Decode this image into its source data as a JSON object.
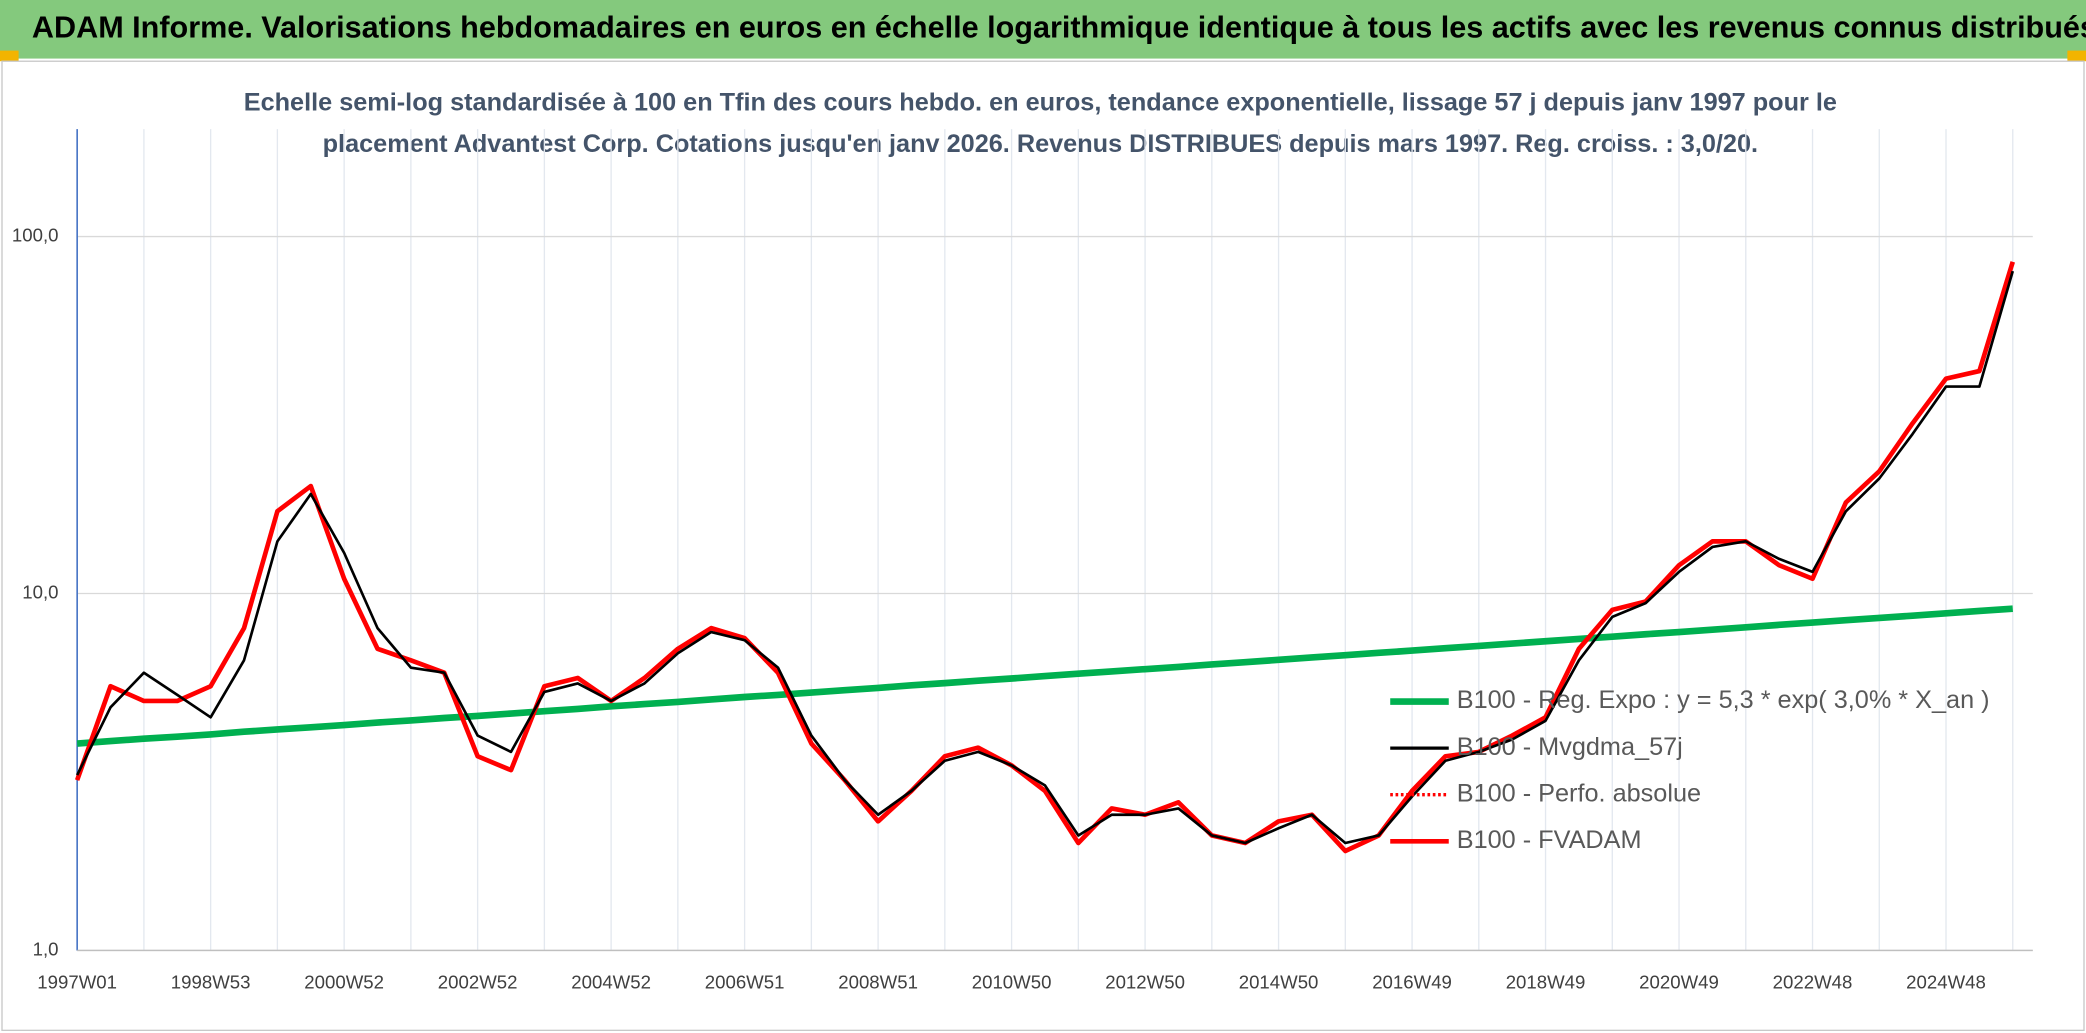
{
  "chart_data": {
    "type": "line",
    "title": "ADAM Informe. Valorisations hebdomadaires en euros en échelle logarithmique identique à tous les actifs avec les revenus connus distribués",
    "subtitle": [
      "Echelle semi-log standardisée à 100 en Tfin des cours hebdo. en euros, tendance exponentielle, lissage 57 j depuis janv 1997 pour le",
      "placement Advantest Corp. Cotations jusqu'en janv 2026. Revenus DISTRIBUES depuis mars 1997. Reg. croiss. : 3,0/20."
    ],
    "categories": [
      "1997W01",
      null,
      null,
      null,
      "1998W53",
      null,
      null,
      null,
      "2000W52",
      null,
      null,
      null,
      "2002W52",
      null,
      null,
      null,
      "2004W52",
      null,
      null,
      null,
      "2006W51",
      null,
      null,
      null,
      "2008W51",
      null,
      null,
      null,
      "2010W50",
      null,
      null,
      null,
      "2012W50",
      null,
      null,
      null,
      "2014W50",
      null,
      null,
      null,
      "2016W49",
      null,
      null,
      null,
      "2018W49",
      null,
      null,
      null,
      "2020W49",
      null,
      null,
      null,
      "2022W48",
      null,
      null,
      null,
      "2024W48",
      null,
      null
    ],
    "log_scale": true,
    "ylim": [
      1,
      200
    ],
    "yticks": [
      {
        "value": 1,
        "label": "1,0"
      },
      {
        "value": 10,
        "label": "10,0"
      },
      {
        "value": 100,
        "label": "100,0"
      }
    ],
    "grid": true,
    "legend": "right",
    "series": [
      {
        "name": "B100 - Reg. Expo : y = 5,3 * exp( 3,0% *  X_an )",
        "color": "#00b050",
        "style": "solid",
        "values": [
          3.8,
          3.86,
          3.92,
          3.97,
          4.03,
          4.1,
          4.16,
          4.22,
          4.28,
          4.35,
          4.41,
          4.48,
          4.54,
          4.61,
          4.68,
          4.75,
          4.83,
          4.9,
          4.97,
          5.05,
          5.13,
          5.2,
          5.28,
          5.36,
          5.44,
          5.53,
          5.61,
          5.7,
          5.78,
          5.87,
          5.96,
          6.05,
          6.14,
          6.23,
          6.33,
          6.42,
          6.52,
          6.62,
          6.72,
          6.82,
          6.92,
          7.03,
          7.13,
          7.24,
          7.35,
          7.46,
          7.57,
          7.69,
          7.8,
          7.92,
          8.04,
          8.17,
          8.29,
          8.42,
          8.54,
          8.67,
          8.8,
          8.94,
          9.07
        ]
      },
      {
        "name": "B100 - Mvgdma_57j",
        "color": "#000000",
        "style": "solid",
        "values": [
          3.1,
          4.8,
          6.0,
          5.2,
          4.5,
          6.5,
          14,
          19,
          13,
          8.0,
          6.2,
          6.0,
          4.0,
          3.6,
          5.3,
          5.6,
          5.0,
          5.6,
          6.8,
          7.8,
          7.4,
          6.2,
          4.0,
          3.0,
          2.4,
          2.8,
          3.4,
          3.6,
          3.3,
          2.9,
          2.1,
          2.4,
          2.4,
          2.5,
          2.1,
          2.0,
          2.2,
          2.4,
          2.0,
          2.1,
          2.7,
          3.4,
          3.6,
          3.9,
          4.4,
          6.5,
          8.6,
          9.4,
          11.5,
          13.5,
          14,
          12.5,
          11.5,
          17,
          21,
          28,
          38,
          38,
          80
        ]
      },
      {
        "name": "B100 - Perfo. absolue",
        "color": "#ff0000",
        "style": "dotted",
        "values": [
          3.0,
          5.5,
          5.0,
          5.0,
          5.5,
          8.0,
          17,
          20,
          11,
          7.0,
          6.5,
          6.0,
          3.5,
          3.2,
          5.5,
          5.8,
          5.0,
          5.8,
          7.0,
          8.0,
          7.5,
          6.0,
          3.8,
          3.0,
          2.3,
          2.8,
          3.5,
          3.7,
          3.3,
          2.8,
          2.0,
          2.5,
          2.4,
          2.6,
          2.1,
          2.0,
          2.3,
          2.4,
          1.9,
          2.1,
          2.8,
          3.5,
          3.6,
          4.0,
          4.5,
          7.0,
          9.0,
          9.5,
          12,
          14,
          14,
          12,
          11,
          18,
          22,
          30,
          40,
          42,
          85
        ]
      },
      {
        "name": "B100 - FVADAM",
        "color": "#ff0000",
        "style": "solid",
        "values": [
          3.0,
          5.5,
          5.0,
          5.0,
          5.5,
          8.0,
          17,
          20,
          11,
          7.0,
          6.5,
          6.0,
          3.5,
          3.2,
          5.5,
          5.8,
          5.0,
          5.8,
          7.0,
          8.0,
          7.5,
          6.0,
          3.8,
          3.0,
          2.3,
          2.8,
          3.5,
          3.7,
          3.3,
          2.8,
          2.0,
          2.5,
          2.4,
          2.6,
          2.1,
          2.0,
          2.3,
          2.4,
          1.9,
          2.1,
          2.8,
          3.5,
          3.6,
          4.0,
          4.5,
          7.0,
          9.0,
          9.5,
          12,
          14,
          14,
          12,
          11,
          18,
          22,
          30,
          40,
          42,
          85
        ]
      }
    ]
  }
}
